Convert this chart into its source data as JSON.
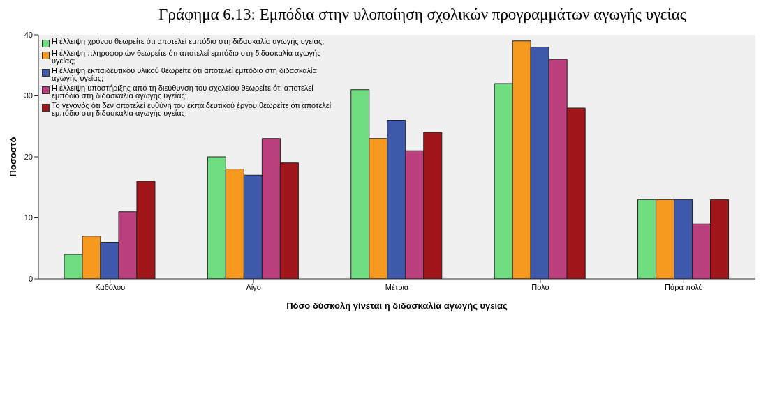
{
  "chart_data": {
    "type": "bar",
    "title": "Γράφημα 6.13: Εμπόδια στην υλοποίηση σχολικών προγραμμάτων αγωγής υγείας",
    "xlabel": "Πόσο δύσκολη γίνεται η διδασκαλία αγωγής υγείας",
    "ylabel": "Ποσοστό",
    "categories": [
      "Καθόλου",
      "Λίγο",
      "Μέτρια",
      "Πολύ",
      "Πάρα πολύ"
    ],
    "series": [
      {
        "name": "Η έλλειψη χρόνου θεωρείτε ότι αποτελεί εμπόδιο στη διδασκαλία αγωγής υγείας;",
        "color": "#70dc80",
        "values": [
          4,
          20,
          31,
          32,
          13
        ]
      },
      {
        "name": "Η έλλειψη πληροφοριών θεωρείτε ότι αποτελεί εμπόδιο στη διδασκαλία αγωγής υγείας;",
        "color": "#f7991f",
        "values": [
          7,
          18,
          23,
          39,
          13
        ]
      },
      {
        "name": "Η έλλειψη εκπαιδευτικού υλικού θεωρείτε ότι αποτελεί εμπόδιο στη διδασκαλία αγωγής υγείας;",
        "color": "#3e58ab",
        "values": [
          6,
          17,
          26,
          38,
          13
        ]
      },
      {
        "name": "Η έλλειψη υποστήριξης από τη διεύθυνση του σχολείου θεωρείτε ότι αποτελεί εμπόδιο στη διδασκαλία αγωγής υγείας;",
        "color": "#bc3f7e",
        "values": [
          11,
          23,
          21,
          36,
          9
        ]
      },
      {
        "name": "Το γεγονός ότι δεν αποτελεί ευθύνη του εκπαιδευτικού έργου θεωρείτε ότι αποτελεί εμπόδιο στη διδασκαλία αγωγής υγείας;",
        "color": "#a0161a",
        "values": [
          16,
          19,
          24,
          28,
          13
        ]
      }
    ],
    "ylim": [
      0,
      40
    ],
    "yticks": [
      0,
      10,
      20,
      30,
      40
    ],
    "grid": false,
    "legend": "top left"
  }
}
